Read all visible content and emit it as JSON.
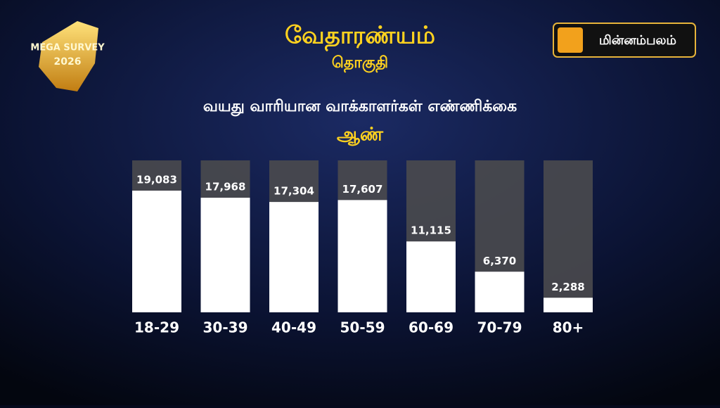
{
  "badge": {
    "line1": "MEGA SURVEY",
    "line2": "2026"
  },
  "logo": "மின்னம்பலம்",
  "chart_data": {
    "type": "bar",
    "title": "வேதாரண்யம்",
    "subtitle": "தொகுதி",
    "chart_title": "வயது வாரியான வாக்காளர்கள் எண்ணிக்கை",
    "categories": [
      "18-29",
      "30-39",
      "40-49",
      "50-59",
      "60-69",
      "70-79",
      "80+"
    ],
    "series": [
      {
        "name": "ஆண்",
        "color": "#ffffff",
        "values": [
          19083,
          17968,
          17304,
          17607,
          11115,
          6370,
          2288
        ],
        "value_labels": [
          "19,083",
          "17,968",
          "17,304",
          "17,607",
          "11,115",
          "6,370",
          "2,288"
        ]
      }
    ]
  }
}
